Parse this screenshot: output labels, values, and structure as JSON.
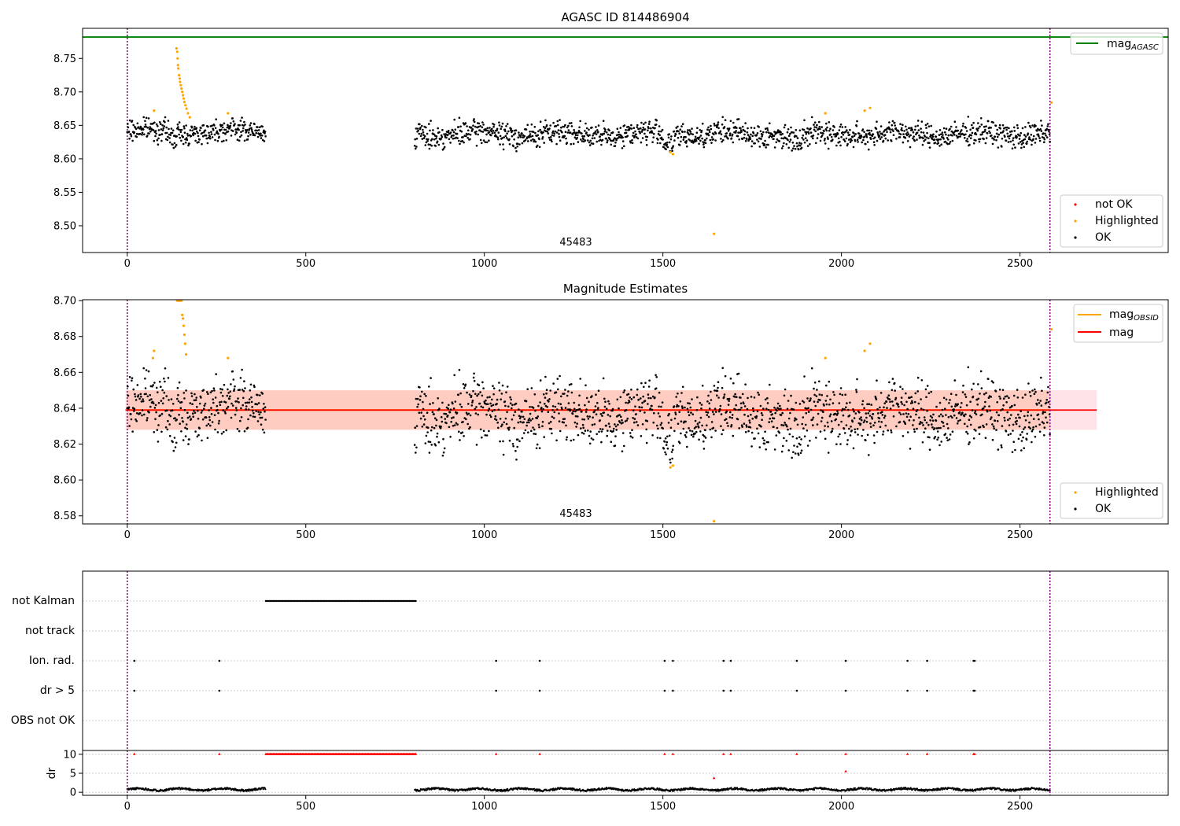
{
  "chart_data": [
    {
      "type": "scatter",
      "title": "AGASC ID 814486904",
      "annotation": "45483",
      "xlim": [
        -125,
        2915
      ],
      "ylim": [
        8.46,
        8.795
      ],
      "x_ticks": [
        0,
        500,
        1000,
        1500,
        2000,
        2500
      ],
      "y_ticks": [
        8.5,
        8.55,
        8.6,
        8.65,
        8.7,
        8.75
      ],
      "vlines": [
        0,
        2584
      ],
      "hline": {
        "name": "mag_AGASC",
        "y": 8.782,
        "color": "#008000"
      },
      "legend_lines": [
        {
          "name": "mag",
          "sub": "AGASC",
          "color": "#008000"
        }
      ],
      "legend_lines_position": "upper right",
      "legend_points": [
        {
          "name": "not OK",
          "color": "#ff0000"
        },
        {
          "name": "Highlighted",
          "color": "#ffa500"
        },
        {
          "name": "OK",
          "color": "#000000"
        }
      ],
      "legend_points_position": "lower right",
      "ok_segments": [
        {
          "x": [
            0,
            388
          ],
          "mean": 8.641,
          "spread": 0.02
        },
        {
          "x": [
            805,
            2584
          ],
          "mean": 8.637,
          "spread": 0.022
        }
      ],
      "highlighted": [
        [
          138,
          8.765
        ],
        [
          140,
          8.76
        ],
        [
          141,
          8.75
        ],
        [
          142,
          8.74
        ],
        [
          143,
          8.735
        ],
        [
          145,
          8.725
        ],
        [
          147,
          8.72
        ],
        [
          148,
          8.715
        ],
        [
          150,
          8.71
        ],
        [
          152,
          8.705
        ],
        [
          154,
          8.7
        ],
        [
          156,
          8.695
        ],
        [
          158,
          8.69
        ],
        [
          160,
          8.685
        ],
        [
          163,
          8.68
        ],
        [
          166,
          8.675
        ],
        [
          170,
          8.668
        ],
        [
          175,
          8.662
        ],
        [
          75,
          8.672
        ],
        [
          282,
          8.668
        ],
        [
          1528,
          8.607
        ],
        [
          1521,
          8.61
        ],
        [
          1643,
          8.488
        ],
        [
          1955,
          8.668
        ],
        [
          2065,
          8.672
        ],
        [
          2080,
          8.676
        ],
        [
          2588,
          8.684
        ]
      ],
      "not_ok": []
    },
    {
      "type": "scatter",
      "title": "Magnitude Estimates",
      "annotation": "45483",
      "xlim": [
        -125,
        2915
      ],
      "ylim": [
        8.5755,
        8.7005
      ],
      "x_ticks": [
        0,
        500,
        1000,
        1500,
        2000,
        2500
      ],
      "y_ticks": [
        8.58,
        8.6,
        8.62,
        8.64,
        8.66,
        8.68,
        8.7
      ],
      "vlines": [
        0,
        2584
      ],
      "mag_line": {
        "name": "mag",
        "y": 8.639,
        "color": "#ff0000",
        "x": [
          -5,
          2715
        ]
      },
      "mag_band": {
        "ymin": 8.628,
        "ymax": 8.65,
        "color": "#ffc0cb"
      },
      "obsid_line": {
        "name": "mag_OBSID",
        "y": 8.639,
        "color": "#ffa500",
        "x": [
          0,
          2584
        ]
      },
      "obsid_band": {
        "ymin": 8.628,
        "ymax": 8.65,
        "color": "#ffa07a"
      },
      "legend_lines": [
        {
          "name": "mag",
          "sub": "OBSID",
          "color": "#ffa500"
        },
        {
          "name": "mag",
          "sub": "",
          "color": "#ff0000"
        }
      ],
      "legend_lines_position": "upper right",
      "legend_points": [
        {
          "name": "Highlighted",
          "color": "#ffa500"
        },
        {
          "name": "OK",
          "color": "#000000"
        }
      ],
      "legend_points_position": "lower right",
      "ok_segments": [
        {
          "x": [
            0,
            388
          ],
          "mean": 8.641,
          "spread": 0.02
        },
        {
          "x": [
            805,
            2584
          ],
          "mean": 8.637,
          "spread": 0.022
        }
      ],
      "highlighted": [
        [
          140,
          8.7
        ],
        [
          143,
          8.7
        ],
        [
          146,
          8.7
        ],
        [
          149,
          8.7
        ],
        [
          152,
          8.7
        ],
        [
          154,
          8.692
        ],
        [
          156,
          8.69
        ],
        [
          158,
          8.686
        ],
        [
          160,
          8.681
        ],
        [
          162,
          8.676
        ],
        [
          165,
          8.67
        ],
        [
          75,
          8.672
        ],
        [
          72,
          8.668
        ],
        [
          282,
          8.668
        ],
        [
          1521,
          8.607
        ],
        [
          1528,
          8.608
        ],
        [
          1643,
          8.577
        ],
        [
          1955,
          8.668
        ],
        [
          2065,
          8.672
        ],
        [
          2080,
          8.676
        ],
        [
          2588,
          8.684
        ]
      ]
    },
    {
      "type": "scatter",
      "flags": [
        "OBS not OK",
        "dr > 5",
        "Ion. rad.",
        "not track",
        "not Kalman"
      ],
      "xlim": [
        -125,
        2915
      ],
      "x_ticks": [
        0,
        500,
        1000,
        1500,
        2000,
        2500
      ],
      "vlines": [
        0,
        2584
      ],
      "not_kalman_range": [
        388,
        808
      ],
      "flag_x": [
        20,
        258,
        1033,
        1155,
        1505,
        1528,
        1670,
        1690,
        1875,
        2012,
        2185,
        2240,
        2370,
        2373
      ],
      "dr": {
        "ylabel": "dr",
        "ylim": [
          -0.8,
          11
        ],
        "y_ticks": [
          0,
          5,
          10
        ],
        "spikes": [
          [
            20,
            10
          ],
          [
            258,
            10
          ],
          [
            1033,
            10
          ],
          [
            1155,
            10
          ],
          [
            1505,
            10
          ],
          [
            1528,
            10
          ],
          [
            1670,
            10
          ],
          [
            1690,
            10
          ],
          [
            1875,
            10
          ],
          [
            2012,
            10
          ],
          [
            2185,
            10
          ],
          [
            2240,
            10
          ],
          [
            2370,
            10
          ],
          [
            2373,
            10
          ],
          [
            1643,
            3.7
          ],
          [
            2012,
            5.5
          ]
        ],
        "not_kalman_value": 10
      }
    }
  ]
}
